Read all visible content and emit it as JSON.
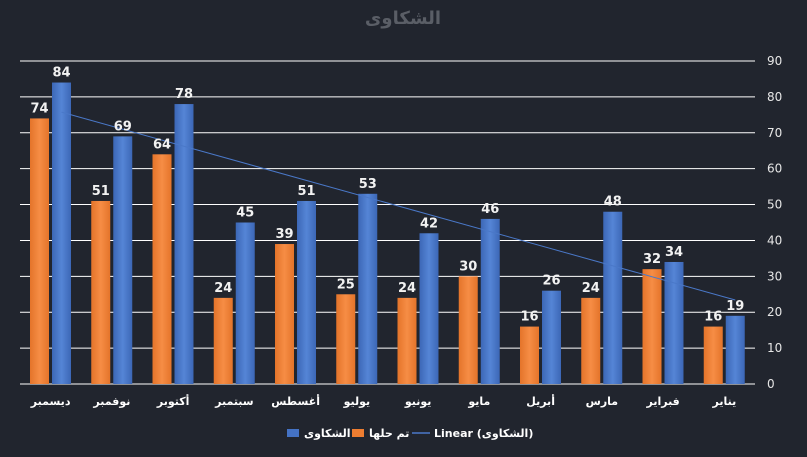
{
  "chart_data": {
    "type": "bar",
    "title": "الشكاوى",
    "categories": [
      "ديسمبر",
      "نوفمبر",
      "أكتوبر",
      "سبتمبر",
      "أغسطس",
      "يوليو",
      "يونيو",
      "مايو",
      "أبريل",
      "مارس",
      "فبراير",
      "يناير"
    ],
    "series": [
      {
        "name": "تم حلها",
        "color": "#ed7d31",
        "values": [
          74,
          51,
          64,
          24,
          39,
          25,
          24,
          30,
          16,
          24,
          32,
          16
        ]
      },
      {
        "name": "الشكاوى",
        "color": "#4472c4",
        "values": [
          84,
          69,
          78,
          45,
          51,
          53,
          42,
          46,
          26,
          48,
          34,
          19
        ]
      }
    ],
    "trendline": {
      "name": "Linear (الشكاوى)",
      "color": "#4a78c8",
      "of_series": "الشكاوى"
    },
    "yaxis": {
      "side": "right",
      "min": 0,
      "max": 90,
      "step": 10,
      "ticks": [
        "0",
        "10",
        "20",
        "30",
        "40",
        "50",
        "60",
        "70",
        "80",
        "90"
      ]
    },
    "grid": true,
    "legend": {
      "position": "bottom",
      "entries": [
        "الشكاوى",
        "تم حلها",
        "Linear (الشكاوى)"
      ]
    }
  }
}
